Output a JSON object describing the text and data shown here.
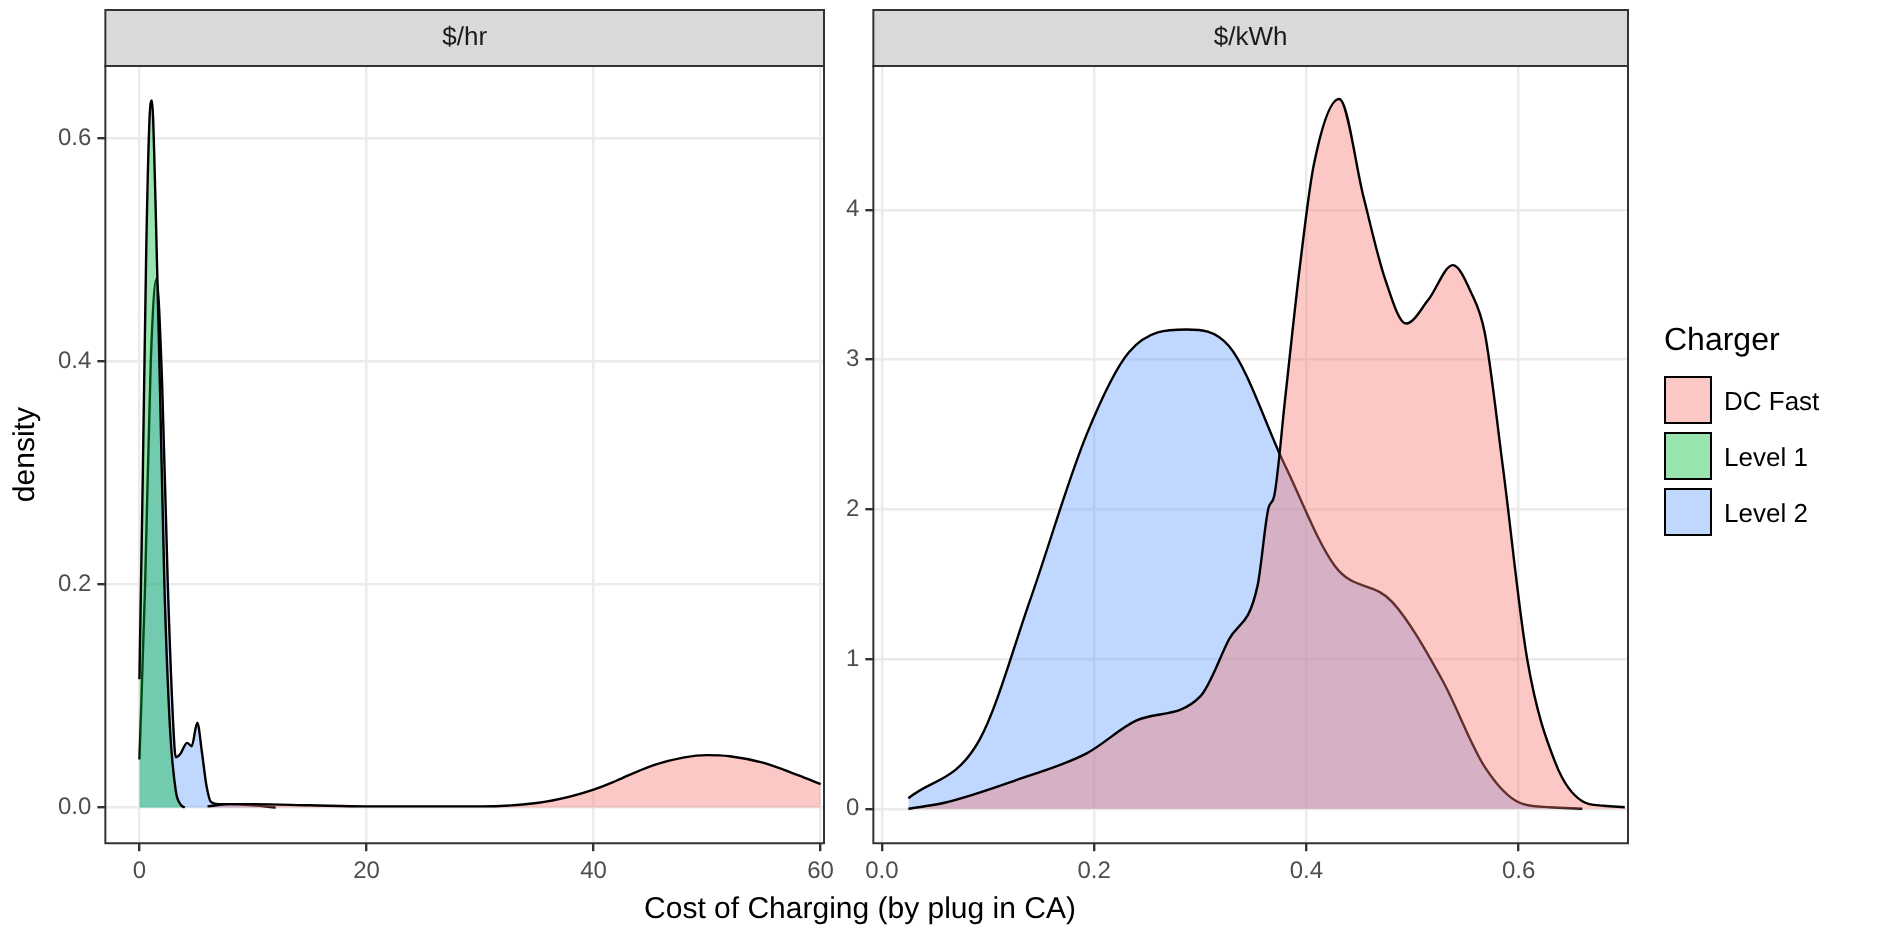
{
  "chart_data": [
    {
      "type": "area",
      "title": "$/hr",
      "xlabel": "Cost of Charging (by plug in CA)",
      "ylabel": "density",
      "legend_title": "Charger",
      "legend": "right",
      "grid": true,
      "xlim": [
        -3,
        60.3
      ],
      "xticks": [
        0,
        20,
        40,
        60
      ],
      "ylim": [
        -0.032,
        0.665
      ],
      "yticks": [
        {
          "value": 0,
          "label": "0.0"
        },
        {
          "value": 0.2,
          "label": "0.2"
        },
        {
          "value": 0.4,
          "label": "0.4"
        },
        {
          "value": 0.6,
          "label": "0.6"
        }
      ],
      "series": [
        {
          "name": "DC Fast",
          "color": "#f8766d",
          "x": [
            6,
            8,
            10,
            15,
            20,
            25,
            30,
            35,
            38,
            40,
            42,
            45,
            48,
            50,
            52,
            55,
            58,
            60
          ],
          "values": [
            0.001,
            0.003,
            0.003,
            0.002,
            0.001,
            0.001,
            0.001,
            0.004,
            0.01,
            0.016,
            0.024,
            0.037,
            0.045,
            0.047,
            0.046,
            0.04,
            0.029,
            0.021
          ]
        },
        {
          "name": "Level 1",
          "color": "#00ba38",
          "x": [
            0,
            0.3,
            0.6,
            0.9,
            1.1,
            1.4,
            1.8,
            2.2,
            2.7,
            3.2,
            3.6,
            4
          ],
          "values": [
            0.115,
            0.3,
            0.5,
            0.62,
            0.634,
            0.55,
            0.38,
            0.2,
            0.07,
            0.015,
            0.003,
            0
          ]
        },
        {
          "name": "Level 2",
          "color": "#619cff",
          "x": [
            0,
            0.5,
            1,
            1.5,
            2,
            2.5,
            3,
            3.2,
            3.6,
            4.2,
            4.6,
            5.1,
            5.5,
            5.9,
            6.3,
            7,
            8,
            10,
            12
          ],
          "values": [
            0.043,
            0.2,
            0.4,
            0.474,
            0.38,
            0.2,
            0.07,
            0.045,
            0.048,
            0.058,
            0.055,
            0.076,
            0.05,
            0.02,
            0.005,
            0.003,
            0.003,
            0.002,
            0
          ]
        }
      ]
    },
    {
      "type": "area",
      "title": "$/kWh",
      "grid": true,
      "xlim": [
        -0.008,
        0.703
      ],
      "xticks": [
        {
          "value": 0,
          "label": "0.0"
        },
        {
          "value": 0.2,
          "label": "0.2"
        },
        {
          "value": 0.4,
          "label": "0.4"
        },
        {
          "value": 0.6,
          "label": "0.6"
        }
      ],
      "ylim": [
        -0.23,
        4.96
      ],
      "yticks": [
        0,
        1,
        2,
        3,
        4
      ],
      "series": [
        {
          "name": "DC Fast",
          "color": "#f8766d",
          "x": [
            0.025,
            0.059,
            0.126,
            0.193,
            0.24,
            0.3,
            0.327,
            0.354,
            0.364,
            0.37,
            0.38,
            0.394,
            0.407,
            0.431,
            0.454,
            0.474,
            0.494,
            0.515,
            0.538,
            0.555,
            0.568,
            0.585,
            0.608,
            0.635,
            0.66,
            0.68,
            0.7
          ],
          "values": [
            0,
            0.04,
            0.19,
            0.37,
            0.59,
            0.75,
            1.13,
            1.49,
            2.0,
            2.1,
            2.74,
            3.63,
            4.3,
            4.74,
            4.08,
            3.54,
            3.24,
            3.4,
            3.63,
            3.45,
            3.18,
            2.29,
            1.0,
            0.3,
            0.05,
            0.02,
            0.01
          ]
        },
        {
          "name": "Level 2",
          "color": "#619cff",
          "x": [
            0.025,
            0.092,
            0.14,
            0.193,
            0.233,
            0.287,
            0.327,
            0.38,
            0.427,
            0.481,
            0.528,
            0.568,
            0.601,
            0.63,
            0.66
          ],
          "values": [
            0.07,
            0.46,
            1.4,
            2.5,
            3.05,
            3.2,
            3.09,
            2.29,
            1.62,
            1.38,
            0.86,
            0.28,
            0.04,
            0.01,
            0
          ]
        }
      ]
    }
  ]
}
